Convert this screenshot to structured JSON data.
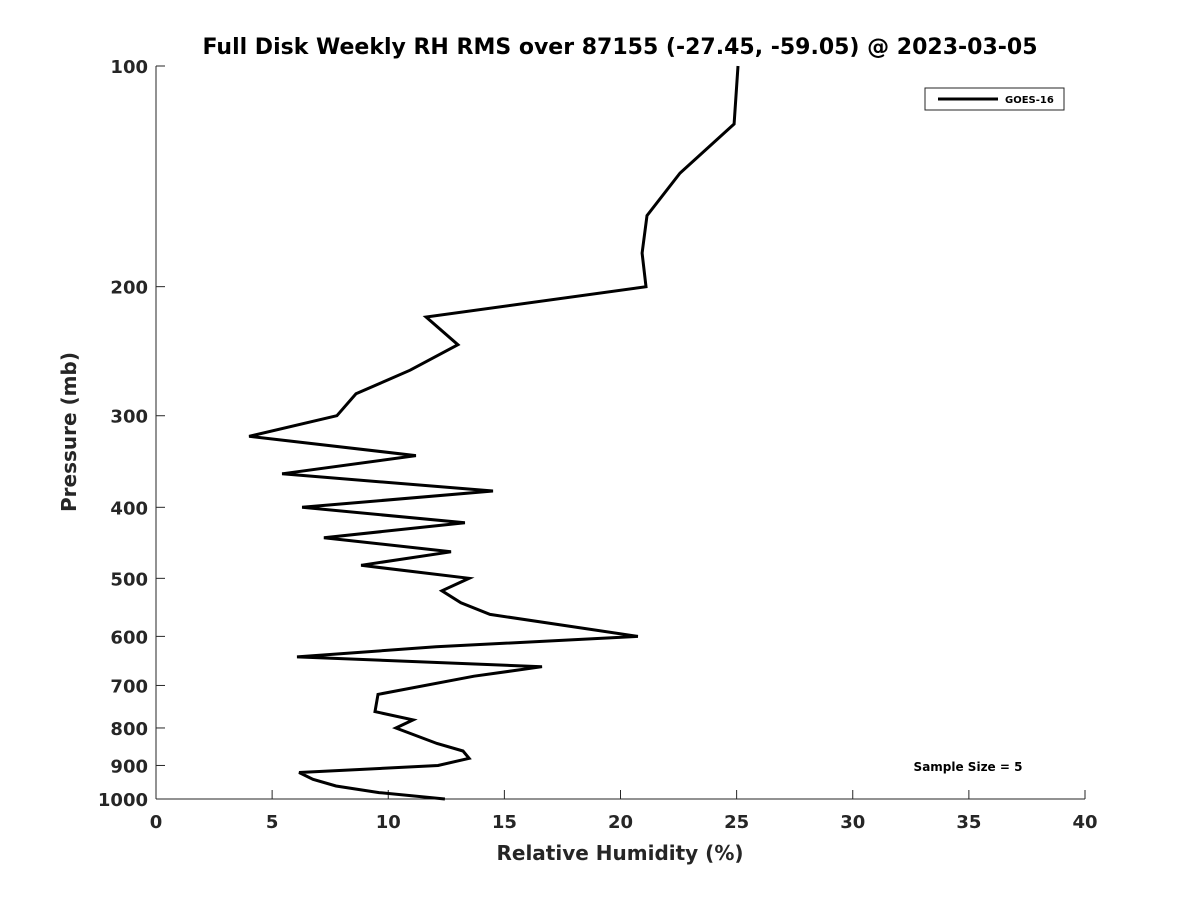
{
  "chart_data": {
    "type": "line",
    "title": "Full Disk Weekly RH RMS over 87155 (-27.45, -59.05) @ 2023-03-05",
    "xlabel": "Relative Humidity (%)",
    "ylabel": "Pressure (mb)",
    "xlim": [
      0,
      40
    ],
    "ylim": [
      1000,
      100
    ],
    "yscale": "log",
    "y_reversed": true,
    "xticks": [
      0,
      5,
      10,
      15,
      20,
      25,
      30,
      35,
      40
    ],
    "yticks": [
      100,
      200,
      300,
      400,
      500,
      600,
      700,
      800,
      900,
      1000
    ],
    "grid": false,
    "legend": {
      "placement": "top-right",
      "entries": [
        "GOES-16"
      ]
    },
    "annotation": "Sample Size = 5",
    "series": [
      {
        "name": "GOES-16",
        "color": "#000000",
        "pressure": [
          100,
          120,
          140,
          160,
          180,
          200,
          220,
          240,
          260,
          280,
          300,
          320,
          340,
          360,
          380,
          400,
          420,
          440,
          460,
          480,
          500,
          520,
          540,
          560,
          600,
          620,
          640,
          660,
          680,
          720,
          760,
          780,
          800,
          840,
          860,
          880,
          900,
          920,
          940,
          960,
          980,
          1000
        ],
        "values": [
          25.06,
          24.89,
          22.56,
          21.14,
          20.93,
          21.1,
          11.63,
          13.0,
          10.94,
          8.61,
          7.79,
          4.01,
          11.19,
          5.43,
          14.51,
          6.29,
          13.3,
          7.23,
          12.7,
          8.83,
          13.48,
          12.31,
          13.13,
          14.38,
          20.75,
          12.06,
          6.07,
          16.62,
          13.69,
          9.56,
          9.43,
          11.07,
          10.33,
          12.1,
          13.22,
          13.48,
          12.14,
          6.16,
          6.76,
          7.75,
          9.6,
          12.44
        ]
      }
    ]
  }
}
